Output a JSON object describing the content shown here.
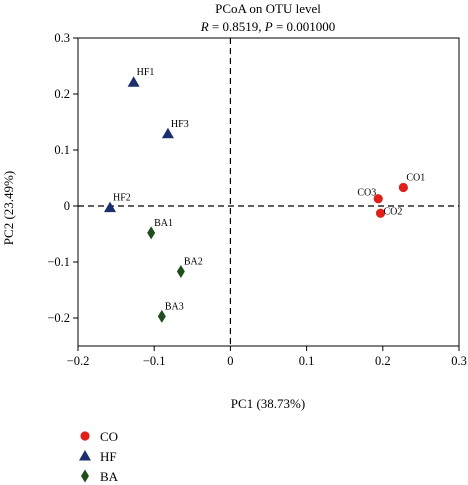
{
  "chart_data": {
    "type": "scatter",
    "title": "PCoA on OTU level",
    "subtitle": {
      "r_label": "R",
      "r_value": " = 0.8519, ",
      "p_label": "P",
      "p_value": " = 0.001000"
    },
    "xlabel": "PC1 (38.73%)",
    "ylabel": "PC2 (23.49%)",
    "xlim": [
      -0.2,
      0.3
    ],
    "ylim": [
      -0.25,
      0.3
    ],
    "xticks": [
      {
        "v": -0.2,
        "label": "−0.2"
      },
      {
        "v": -0.1,
        "label": "−0.1"
      },
      {
        "v": 0,
        "label": "0"
      },
      {
        "v": 0.1,
        "label": "0.1"
      },
      {
        "v": 0.2,
        "label": "0.2"
      },
      {
        "v": 0.3,
        "label": "0.3"
      }
    ],
    "yticks": [
      {
        "v": -0.2,
        "label": "−0.2"
      },
      {
        "v": -0.1,
        "label": "−0.1"
      },
      {
        "v": 0,
        "label": "0"
      },
      {
        "v": 0.1,
        "label": "0.1"
      },
      {
        "v": 0.2,
        "label": "0.2"
      },
      {
        "v": 0.3,
        "label": "0.3"
      }
    ],
    "reference_lines": {
      "x": 0,
      "y": 0,
      "style": "dashed"
    },
    "grid": false,
    "legend_position": "bottom-left",
    "series": [
      {
        "name": "CO",
        "marker": "circle",
        "color": "#e0201b",
        "points": [
          {
            "label": "CO1",
            "x": 0.227,
            "y": 0.033,
            "label_side": "upper-right"
          },
          {
            "label": "CO2",
            "x": 0.197,
            "y": -0.013,
            "label_side": "right"
          },
          {
            "label": "CO3",
            "x": 0.194,
            "y": 0.013,
            "label_side": "upper-left"
          }
        ]
      },
      {
        "name": "HF",
        "marker": "triangle",
        "color": "#1a2f6e",
        "points": [
          {
            "label": "HF1",
            "x": -0.127,
            "y": 0.221,
            "label_side": "upper-right"
          },
          {
            "label": "HF2",
            "x": -0.158,
            "y": -0.003,
            "label_side": "upper-right"
          },
          {
            "label": "HF3",
            "x": -0.082,
            "y": 0.129,
            "label_side": "upper-right"
          }
        ]
      },
      {
        "name": "BA",
        "marker": "diamond",
        "color": "#1e4d1e",
        "points": [
          {
            "label": "BA1",
            "x": -0.104,
            "y": -0.048,
            "label_side": "upper-right"
          },
          {
            "label": "BA2",
            "x": -0.065,
            "y": -0.117,
            "label_side": "upper-right"
          },
          {
            "label": "BA3",
            "x": -0.09,
            "y": -0.197,
            "label_side": "upper-right"
          }
        ]
      }
    ]
  }
}
